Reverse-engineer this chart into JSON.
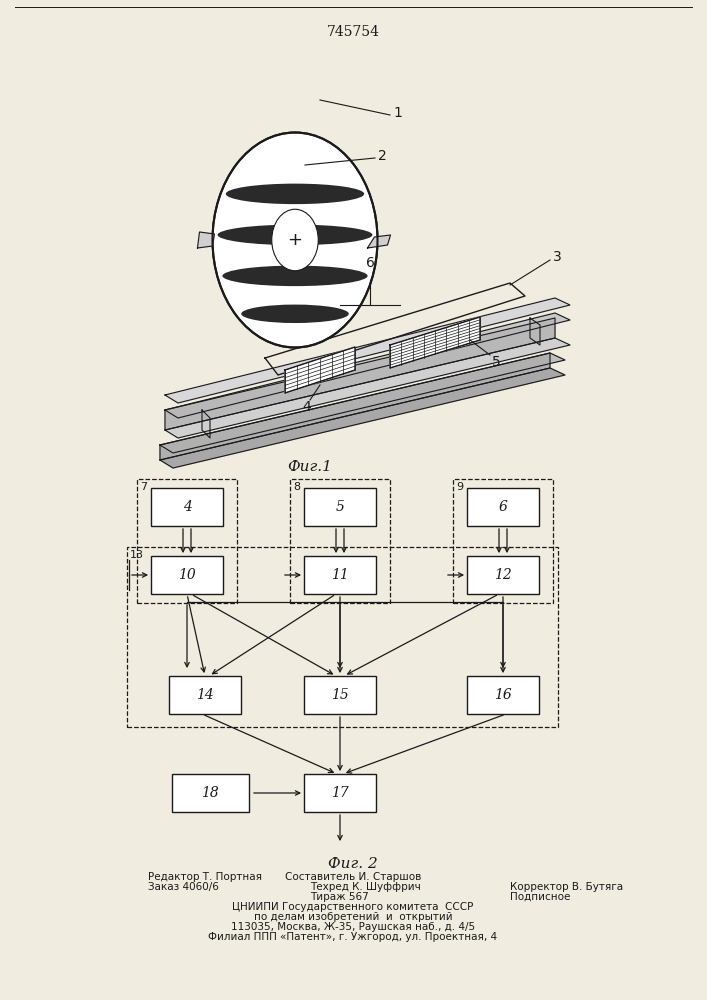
{
  "patent_number": "745754",
  "fig1_caption": "Фиг.1",
  "fig2_caption": "Фиг. 2",
  "background_color": "#f0ece0",
  "line_color": "#1a1a1a",
  "footer_texts": [
    [
      175,
      "Редактор Т. Портная",
      "left"
    ],
    [
      353,
      "Составитель И. Старшов",
      "center"
    ],
    [
      175,
      "Заказ 4060/6",
      "left"
    ],
    [
      353,
      "Техред К. Шуффрич         Корректор В. Бутяга",
      "center"
    ],
    [
      353,
      "Тираж 567                          Подписное",
      "center"
    ],
    [
      353,
      "ЦНИИПИ Государственного комитета  СССР",
      "center"
    ],
    [
      353,
      "по делам изобретений  и  открытий",
      "center"
    ],
    [
      353,
      "113035, Москва, Ж—35, Раушская наб., д. 4/5",
      "center"
    ],
    [
      353,
      "Филиал ППП «Патент», г. Ужгород, ул. Проектная, 4",
      "center"
    ]
  ]
}
